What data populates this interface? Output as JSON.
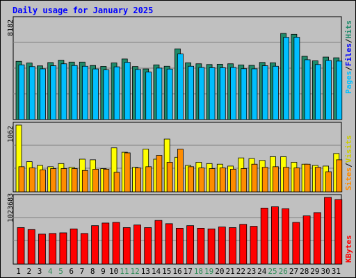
{
  "chart_data": [
    {
      "type": "bar",
      "title": "Daily usage for January 2025",
      "categories": [
        "1",
        "2",
        "3",
        "4",
        "5",
        "6",
        "7",
        "8",
        "9",
        "10",
        "11",
        "12",
        "13",
        "14",
        "15",
        "16",
        "17",
        "18",
        "19",
        "20",
        "21",
        "22",
        "23",
        "24",
        "25",
        "26",
        "27",
        "28",
        "29",
        "30",
        "31"
      ],
      "weekend_days": [
        "4",
        "5",
        "11",
        "12",
        "18",
        "19",
        "25",
        "26"
      ],
      "ymax_label": "8182",
      "ylim": [
        0,
        8182
      ],
      "grid": true,
      "series": [
        {
          "name": "Pages",
          "color": "#1f8a6a",
          "values": [
            4760,
            4620,
            4390,
            4660,
            4850,
            4700,
            4700,
            4420,
            4350,
            4630,
            4950,
            4340,
            4140,
            4470,
            4360,
            5780,
            4640,
            4560,
            4500,
            4520,
            4560,
            4460,
            4430,
            4670,
            4640,
            7040,
            6970,
            5170,
            4800,
            5110,
            5050
          ]
        },
        {
          "name": "Files",
          "color": "#00bfff",
          "values": [
            4470,
            4330,
            4150,
            4400,
            4560,
            4420,
            4360,
            4140,
            4060,
            4310,
            4680,
            4090,
            3880,
            4210,
            4130,
            5360,
            4360,
            4260,
            4240,
            4240,
            4260,
            4160,
            4150,
            4400,
            4360,
            6720,
            6730,
            4890,
            4500,
            4830,
            4780
          ]
        },
        {
          "name": "Hits",
          "color": "#00f5ff",
          "values": [
            4760,
            4620,
            4390,
            4660,
            4850,
            4700,
            4700,
            4420,
            4350,
            4630,
            4950,
            4340,
            4140,
            4470,
            4360,
            5780,
            4640,
            4560,
            4500,
            4520,
            4560,
            4460,
            4430,
            4670,
            4640,
            7040,
            6970,
            5170,
            4800,
            5110,
            5050
          ]
        }
      ],
      "legend": "right"
    },
    {
      "type": "bar",
      "categories": [
        "1",
        "2",
        "3",
        "4",
        "5",
        "6",
        "7",
        "8",
        "9",
        "10",
        "11",
        "12",
        "13",
        "14",
        "15",
        "16",
        "17",
        "18",
        "19",
        "20",
        "21",
        "22",
        "23",
        "24",
        "25",
        "26",
        "27",
        "28",
        "29",
        "30",
        "31"
      ],
      "ymax_label": "1062",
      "ylim": [
        0,
        1062
      ],
      "grid": true,
      "series": [
        {
          "name": "Sites",
          "color": "#ff8c00",
          "values": [
            400,
            380,
            350,
            370,
            370,
            370,
            340,
            360,
            360,
            310,
            620,
            380,
            400,
            580,
            470,
            680,
            400,
            380,
            370,
            380,
            360,
            370,
            440,
            390,
            400,
            390,
            380,
            440,
            390,
            320,
            510
          ]
        },
        {
          "name": "Visits",
          "color": "#ffff00",
          "values": [
            1062,
            480,
            420,
            400,
            450,
            390,
            520,
            510,
            370,
            700,
            630,
            390,
            680,
            520,
            840,
            550,
            420,
            470,
            450,
            440,
            410,
            540,
            530,
            500,
            560,
            560,
            470,
            440,
            420,
            410,
            610
          ]
        }
      ],
      "legend": "right"
    },
    {
      "type": "bar",
      "categories": [
        "1",
        "2",
        "3",
        "4",
        "5",
        "6",
        "7",
        "8",
        "9",
        "10",
        "11",
        "12",
        "13",
        "14",
        "15",
        "16",
        "17",
        "18",
        "19",
        "20",
        "21",
        "22",
        "23",
        "24",
        "25",
        "26",
        "27",
        "28",
        "29",
        "30",
        "31"
      ],
      "ymax_label": "1023683",
      "ylim": [
        0,
        1023683
      ],
      "grid": true,
      "series": [
        {
          "name": "KBytes",
          "color": "#ff0000",
          "values": [
            560000,
            530000,
            460000,
            470000,
            480000,
            540000,
            470000,
            590000,
            630000,
            640000,
            560000,
            600000,
            560000,
            670000,
            620000,
            550000,
            590000,
            550000,
            540000,
            570000,
            560000,
            610000,
            580000,
            860000,
            880000,
            850000,
            640000,
            740000,
            790000,
            1023683,
            990000
          ]
        }
      ],
      "legend": "right"
    }
  ],
  "colors": {
    "panel_bg": "#c0c0c0",
    "title": "#0000ff",
    "weekday_label": "#000000",
    "weekend_label": "#2e8b57",
    "border": "#000000",
    "bar_outline": "#000000"
  }
}
